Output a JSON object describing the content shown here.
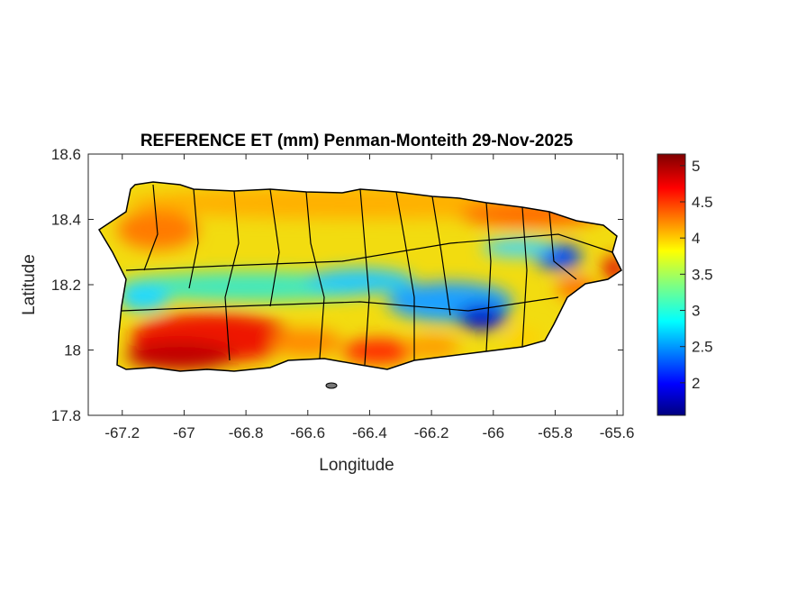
{
  "chart_data": {
    "type": "heatmap",
    "title": "REFERENCE ET (mm) Penman-Monteith 29-Nov-2025",
    "xlabel": "Longitude",
    "ylabel": "Latitude",
    "xlim": [
      -67.31,
      -65.58
    ],
    "ylim": [
      17.8,
      18.6
    ],
    "xticks": [
      -67.2,
      -67,
      -66.8,
      -66.6,
      -66.4,
      -66.2,
      -66,
      -65.8,
      -65.6
    ],
    "xtick_labels": [
      "-67.2",
      "-67",
      "-66.8",
      "-66.6",
      "-66.4",
      "-66.2",
      "-66",
      "-65.8",
      "-65.6"
    ],
    "yticks": [
      17.8,
      18,
      18.2,
      18.4,
      18.6
    ],
    "ytick_labels": [
      "17.8",
      "18",
      "18.2",
      "18.4",
      "18.6"
    ],
    "colorbar": {
      "colormap": "jet",
      "range": [
        1.55,
        5.16
      ],
      "ticks": [
        2,
        2.5,
        3,
        3.5,
        4,
        4.5,
        5
      ],
      "tick_labels": [
        "2",
        "2.5",
        "3",
        "3.5",
        "4",
        "4.5",
        "5"
      ]
    },
    "grid": false
  }
}
